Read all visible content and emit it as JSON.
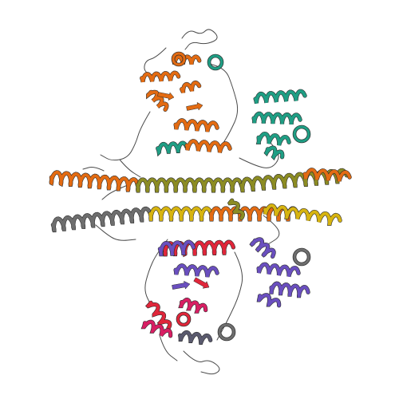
{
  "image": {
    "kind": "protein-ribbon-structure",
    "background": "#ffffff"
  },
  "colors": {
    "orange": "#e36b12",
    "olive": "#8c8c23",
    "yellow": "#d7b410",
    "teal": "#1f9e84",
    "grey": "#6e6e6e",
    "dark_grey": "#4a4a4a",
    "red": "#e0263a",
    "magenta": "#d81e63",
    "purple": "#6a4fbf",
    "slate": "#5a5a6e"
  },
  "regions": [
    {
      "name": "top-left-domain",
      "color": "orange"
    },
    {
      "name": "top-right-domain",
      "color": "teal"
    },
    {
      "name": "central-coiled-coil",
      "colors": [
        "orange",
        "olive",
        "yellow",
        "grey"
      ]
    },
    {
      "name": "bottom-left-domain",
      "colors": [
        "red",
        "purple",
        "magenta",
        "grey"
      ]
    },
    {
      "name": "bottom-right-domain",
      "color": "purple"
    }
  ]
}
